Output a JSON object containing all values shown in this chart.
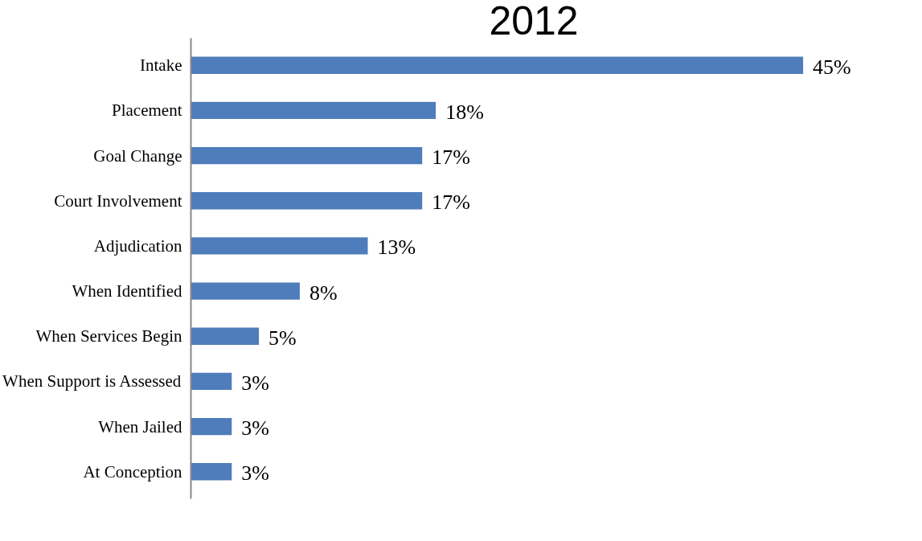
{
  "chart_data": {
    "type": "bar",
    "orientation": "horizontal",
    "title": "2012",
    "categories": [
      "Intake",
      "Placement",
      "Goal Change",
      "Court Involvement",
      "Adjudication",
      "When Identified",
      "When Services Begin",
      "When Support is Assessed",
      "When Jailed",
      "At Conception"
    ],
    "values": [
      45,
      18,
      17,
      17,
      13,
      8,
      5,
      3,
      3,
      3
    ],
    "value_labels": [
      "45%",
      "18%",
      "17%",
      "17%",
      "13%",
      "8%",
      "5%",
      "3%",
      "3%",
      "3%"
    ],
    "color": "#4f7cba",
    "grid": false
  }
}
